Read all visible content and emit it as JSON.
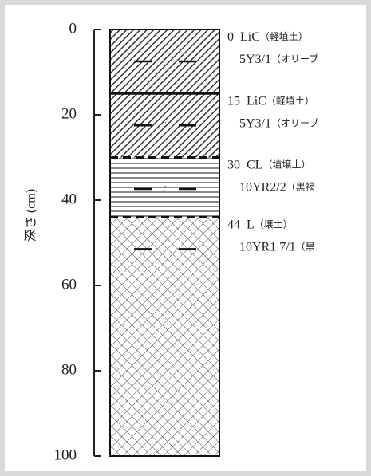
{
  "axis": {
    "label": "深さ (cm)",
    "lim": [
      0,
      100
    ],
    "ticks": [
      0,
      20,
      40,
      60,
      80,
      100
    ]
  },
  "layers": [
    {
      "top": 0,
      "texture": "LiC",
      "texture_name": "（軽埴土）",
      "color": "5Y3/1",
      "color_name": "（オリーブ"
    },
    {
      "top": 15,
      "texture": "LiC",
      "texture_name": "（軽埴土）",
      "color": "5Y3/1",
      "color_name": "（オリーブ"
    },
    {
      "top": 30,
      "texture": "CL",
      "texture_name": "（埴壌土）",
      "color": "10YR2/2",
      "color_name": "（黒褐"
    },
    {
      "top": 44,
      "texture": "L",
      "texture_name": "（壌土）",
      "color": "10YR1.7/1",
      "color_name": "（黒"
    }
  ]
}
